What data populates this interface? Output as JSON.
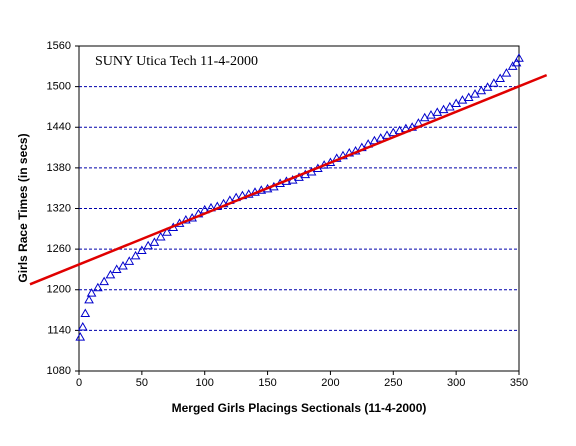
{
  "chart_data": {
    "type": "scatter",
    "title": "SUNY Utica Tech 11-4-2000",
    "x_label": "Merged Girls Placings Sectionals (11-4-2000)",
    "y_label": "Girls Race Times (in secs)",
    "xlim": [
      0,
      350
    ],
    "xticks": [
      0,
      50,
      100,
      150,
      200,
      250,
      300,
      350
    ],
    "ylim": [
      1080,
      1560
    ],
    "yticks": [
      1080,
      1140,
      1200,
      1260,
      1320,
      1380,
      1440,
      1500,
      1560
    ],
    "grid": true,
    "grid_color": "#0000aa",
    "series": [
      {
        "type": "scatter",
        "color": "#0000cc",
        "x": [
          1,
          3,
          5,
          8,
          10,
          15,
          20,
          25,
          30,
          35,
          40,
          45,
          50,
          55,
          60,
          65,
          70,
          75,
          80,
          85,
          90,
          95,
          100,
          105,
          110,
          115,
          120,
          125,
          130,
          135,
          140,
          145,
          150,
          155,
          160,
          165,
          170,
          175,
          180,
          185,
          190,
          195,
          200,
          205,
          210,
          215,
          220,
          225,
          230,
          235,
          240,
          245,
          250,
          255,
          260,
          265,
          270,
          275,
          280,
          285,
          290,
          295,
          300,
          305,
          310,
          315,
          320,
          325,
          330,
          335,
          340,
          345,
          348,
          350
        ],
        "values": [
          1130,
          1145,
          1165,
          1185,
          1195,
          1203,
          1212,
          1222,
          1230,
          1235,
          1242,
          1250,
          1258,
          1265,
          1270,
          1278,
          1285,
          1292,
          1298,
          1303,
          1306,
          1312,
          1318,
          1321,
          1323,
          1327,
          1332,
          1336,
          1339,
          1341,
          1344,
          1347,
          1349,
          1352,
          1357,
          1360,
          1362,
          1366,
          1370,
          1374,
          1379,
          1384,
          1388,
          1394,
          1398,
          1402,
          1405,
          1410,
          1415,
          1420,
          1424,
          1428,
          1432,
          1435,
          1438,
          1440,
          1446,
          1454,
          1458,
          1462,
          1466,
          1470,
          1475,
          1480,
          1484,
          1489,
          1494,
          1499,
          1505,
          1512,
          1520,
          1530,
          1535,
          1542
        ]
      },
      {
        "type": "line",
        "color": "#e00000",
        "x": [
          -39,
          372
        ],
        "values": [
          1208,
          1517
        ]
      }
    ]
  }
}
